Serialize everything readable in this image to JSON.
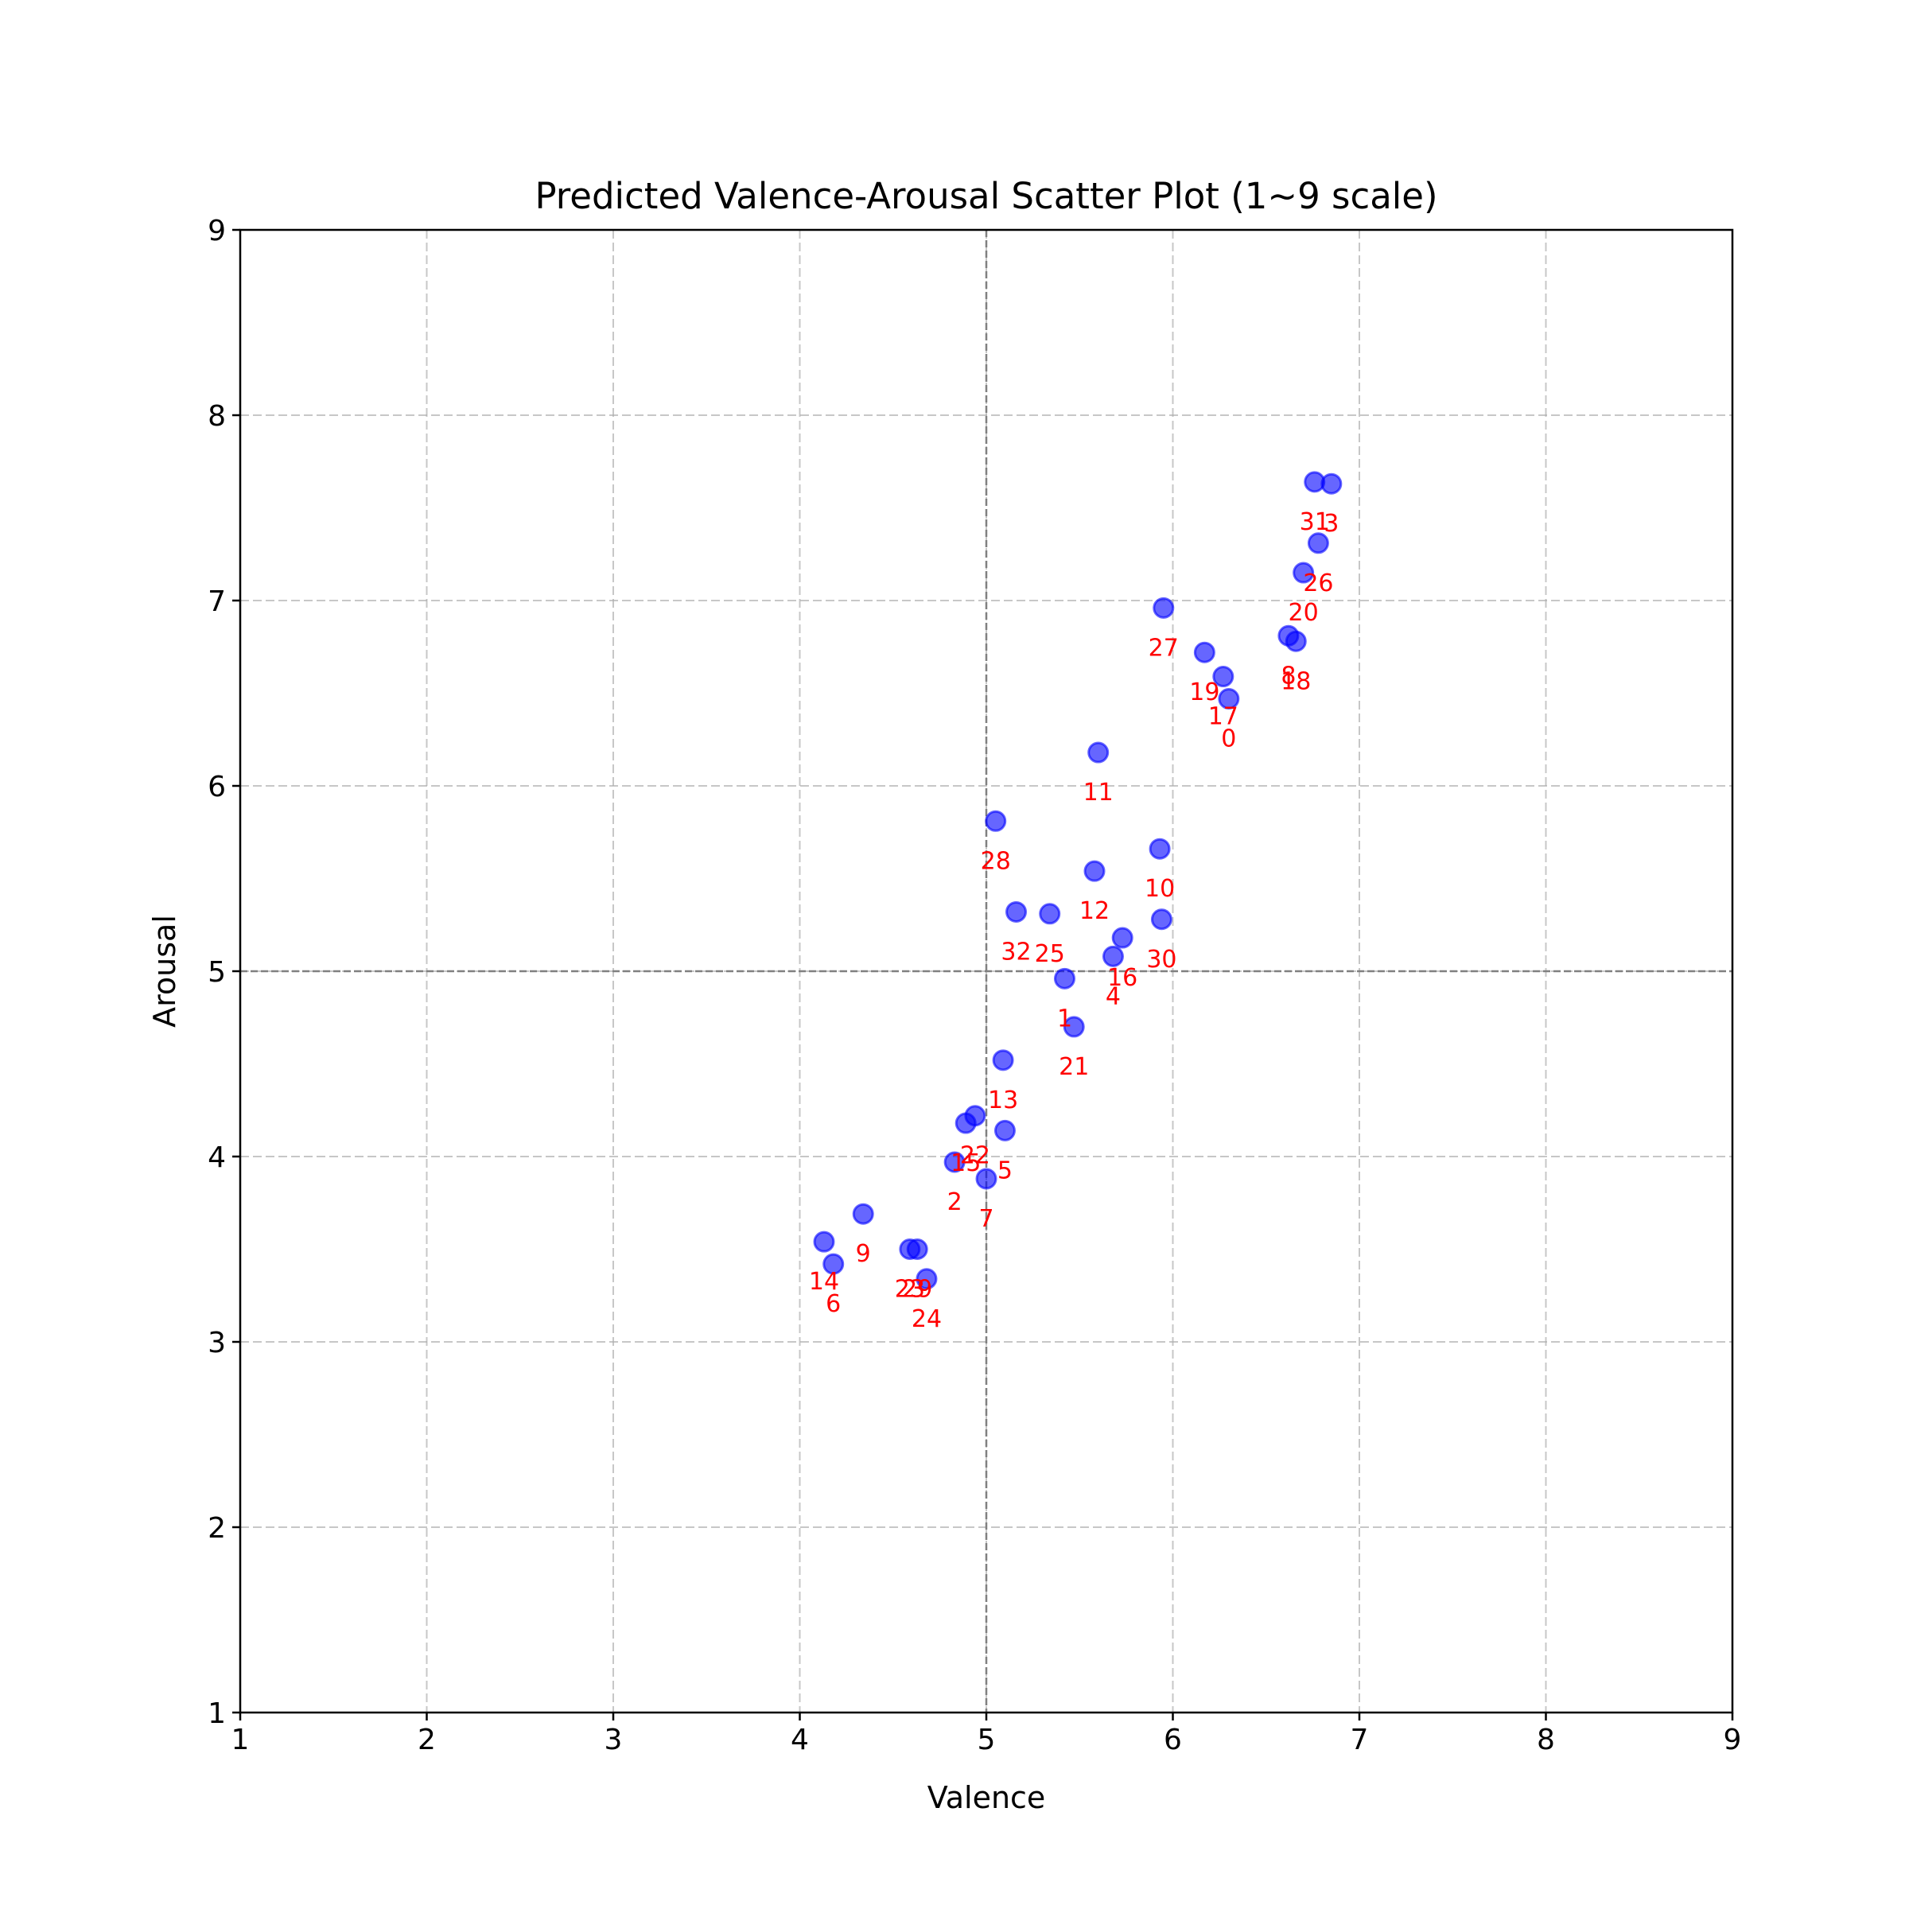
{
  "chart_data": {
    "type": "scatter",
    "title": "Predicted Valence-Arousal Scatter Plot (1~9 scale)",
    "xlabel": "Valence",
    "ylabel": "Arousal",
    "xlim": [
      1,
      9
    ],
    "ylim": [
      1,
      9
    ],
    "xticks": [
      "1",
      "2",
      "3",
      "4",
      "5",
      "6",
      "7",
      "8",
      "9"
    ],
    "yticks": [
      "1",
      "2",
      "3",
      "4",
      "5",
      "6",
      "7",
      "8",
      "9"
    ],
    "grid": true,
    "reference_lines": {
      "x": 5,
      "y": 5
    },
    "point_color": "#0000ff",
    "label_color": "#ff0000",
    "points": [
      {
        "label": "0",
        "x": 6.3,
        "y": 6.47
      },
      {
        "label": "1",
        "x": 5.42,
        "y": 4.96
      },
      {
        "label": "2",
        "x": 4.83,
        "y": 3.97
      },
      {
        "label": "3",
        "x": 6.85,
        "y": 7.63
      },
      {
        "label": "4",
        "x": 5.68,
        "y": 5.08
      },
      {
        "label": "5",
        "x": 5.1,
        "y": 4.14
      },
      {
        "label": "6",
        "x": 4.18,
        "y": 3.42
      },
      {
        "label": "7",
        "x": 5.0,
        "y": 3.88
      },
      {
        "label": "8",
        "x": 6.62,
        "y": 6.81
      },
      {
        "label": "9",
        "x": 4.34,
        "y": 3.69
      },
      {
        "label": "10",
        "x": 5.93,
        "y": 5.66
      },
      {
        "label": "11",
        "x": 5.6,
        "y": 6.18
      },
      {
        "label": "12",
        "x": 5.58,
        "y": 5.54
      },
      {
        "label": "13",
        "x": 5.09,
        "y": 4.52
      },
      {
        "label": "14",
        "x": 4.13,
        "y": 3.54
      },
      {
        "label": "15",
        "x": 4.89,
        "y": 4.18
      },
      {
        "label": "16",
        "x": 5.73,
        "y": 5.18
      },
      {
        "label": "17",
        "x": 6.27,
        "y": 6.59
      },
      {
        "label": "18",
        "x": 6.66,
        "y": 6.78
      },
      {
        "label": "19",
        "x": 6.17,
        "y": 6.72
      },
      {
        "label": "20",
        "x": 6.7,
        "y": 7.15
      },
      {
        "label": "21",
        "x": 5.47,
        "y": 4.7
      },
      {
        "label": "22",
        "x": 4.94,
        "y": 4.22
      },
      {
        "label": "23",
        "x": 4.59,
        "y": 3.5
      },
      {
        "label": "24",
        "x": 4.68,
        "y": 3.34
      },
      {
        "label": "25",
        "x": 5.34,
        "y": 5.31
      },
      {
        "label": "26",
        "x": 6.78,
        "y": 7.31
      },
      {
        "label": "27",
        "x": 5.95,
        "y": 6.96
      },
      {
        "label": "28",
        "x": 5.05,
        "y": 5.81
      },
      {
        "label": "29",
        "x": 4.63,
        "y": 3.5
      },
      {
        "label": "30",
        "x": 5.94,
        "y": 5.28
      },
      {
        "label": "31",
        "x": 6.76,
        "y": 7.64
      },
      {
        "label": "32",
        "x": 5.16,
        "y": 5.32
      }
    ]
  }
}
